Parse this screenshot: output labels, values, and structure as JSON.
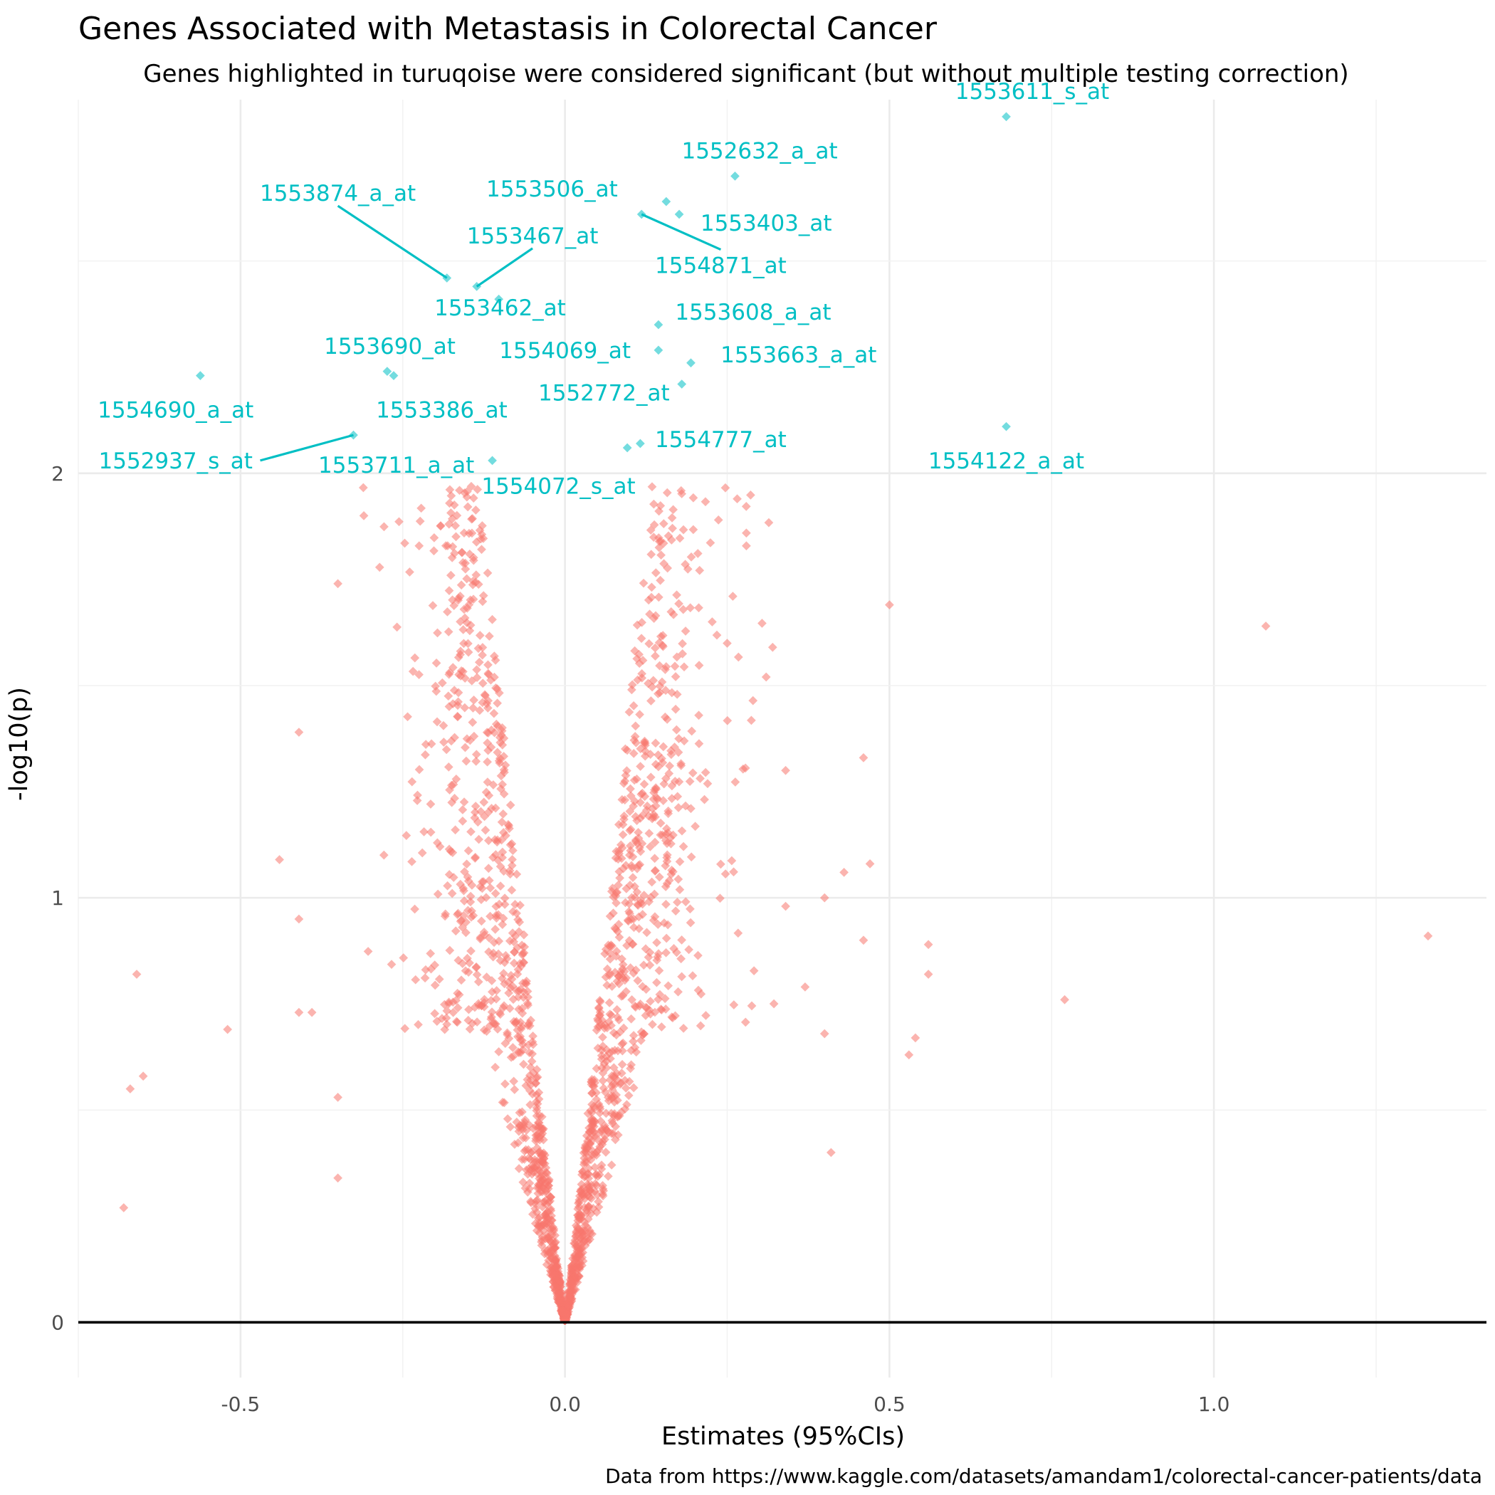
{
  "chart_data": {
    "type": "scatter",
    "title": "Genes Associated with Metastasis in Colorectal Cancer",
    "subtitle": "Genes highlighted in turuqoise were considered significant (but without multiple testing correction)",
    "xlabel": "Estimates (95%CIs)",
    "ylabel": "-log10(p)",
    "caption": "Data from https://www.kaggle.com/datasets/amandam1/colorectal-cancer-patients/data",
    "xlim": [
      -0.75,
      1.42
    ],
    "ylim": [
      -0.13,
      2.88
    ],
    "x_ticks": [
      -0.5,
      0.0,
      0.5,
      1.0
    ],
    "x_tick_labels": [
      "-0.5",
      "0.0",
      "0.5",
      "1.0"
    ],
    "y_ticks": [
      0,
      1,
      2
    ],
    "y_tick_labels": [
      "0",
      "1",
      "2"
    ],
    "grid": true,
    "hline": 0,
    "colors": {
      "significant": "#00bfc4",
      "not_significant": "#f8766d"
    },
    "significant": [
      {
        "label": "1553611_s_at",
        "x": 0.68,
        "y": 2.84,
        "lx": 0.72,
        "ly": 2.9
      },
      {
        "label": "1552632_a_at",
        "x": 0.262,
        "y": 2.7,
        "lx": 0.3,
        "ly": 2.76
      },
      {
        "label": "1553506_at",
        "x": 0.156,
        "y": 2.64,
        "lx": -0.02,
        "ly": 2.67
      },
      {
        "label": "1553403_at",
        "x": 0.176,
        "y": 2.61,
        "lx": 0.31,
        "ly": 2.59
      },
      {
        "label": "1554871_at",
        "x": 0.118,
        "y": 2.61,
        "lx": 0.24,
        "ly": 2.49,
        "leader": true
      },
      {
        "label": "1553874_a_at",
        "x": -0.182,
        "y": 2.46,
        "lx": -0.35,
        "ly": 2.66,
        "leader": true
      },
      {
        "label": "1553467_at",
        "x": -0.136,
        "y": 2.44,
        "lx": -0.05,
        "ly": 2.56,
        "leader": true
      },
      {
        "label": "1553462_at",
        "x": -0.102,
        "y": 2.41,
        "lx": -0.1,
        "ly": 2.39
      },
      {
        "label": "1553608_a_at",
        "x": 0.144,
        "y": 2.35,
        "lx": 0.29,
        "ly": 2.38
      },
      {
        "label": "1554069_at",
        "x": 0.144,
        "y": 2.29,
        "lx": 0.0,
        "ly": 2.29
      },
      {
        "label": "1553663_a_at",
        "x": 0.194,
        "y": 2.26,
        "lx": 0.36,
        "ly": 2.28
      },
      {
        "label": "1553690_at",
        "x": -0.274,
        "y": 2.24,
        "lx": -0.27,
        "ly": 2.3
      },
      {
        "label": "1554690_a_at",
        "x": -0.562,
        "y": 2.23,
        "lx": -0.6,
        "ly": 2.15
      },
      {
        "label": "1553386_at",
        "x": -0.264,
        "y": 2.23,
        "lx": -0.19,
        "ly": 2.15
      },
      {
        "label": "1552772_at",
        "x": 0.18,
        "y": 2.21,
        "lx": 0.06,
        "ly": 2.19
      },
      {
        "label": "1554122_a_at",
        "x": 0.68,
        "y": 2.11,
        "lx": 0.68,
        "ly": 2.03
      },
      {
        "label": "1552937_s_at",
        "x": -0.326,
        "y": 2.09,
        "lx": -0.6,
        "ly": 2.03,
        "leader": true
      },
      {
        "label": "1554777_at",
        "x": 0.116,
        "y": 2.07,
        "lx": 0.24,
        "ly": 2.08
      },
      {
        "label": "1554072_s_at",
        "x": 0.096,
        "y": 2.06,
        "lx": -0.01,
        "ly": 1.97
      },
      {
        "label": "1553711_a_at",
        "x": -0.112,
        "y": 2.03,
        "lx": -0.26,
        "ly": 2.02
      }
    ],
    "outliers": [
      {
        "x": 1.08,
        "y": 1.64
      },
      {
        "x": 1.33,
        "y": 0.91
      },
      {
        "x": 0.5,
        "y": 1.69
      },
      {
        "x": 0.77,
        "y": 0.76
      },
      {
        "x": 0.56,
        "y": 0.82
      },
      {
        "x": 0.56,
        "y": 0.89
      },
      {
        "x": 0.54,
        "y": 0.67
      },
      {
        "x": 0.53,
        "y": 0.63
      },
      {
        "x": 0.47,
        "y": 1.08
      },
      {
        "x": 0.46,
        "y": 0.9
      },
      {
        "x": 0.46,
        "y": 1.33
      },
      {
        "x": 0.43,
        "y": 1.06
      },
      {
        "x": 0.41,
        "y": 0.4
      },
      {
        "x": 0.4,
        "y": 0.68
      },
      {
        "x": 0.4,
        "y": 1.0
      },
      {
        "x": 0.37,
        "y": 0.79
      },
      {
        "x": 0.34,
        "y": 1.3
      },
      {
        "x": 0.34,
        "y": 0.98
      },
      {
        "x": 0.32,
        "y": 1.59
      },
      {
        "x": 0.31,
        "y": 1.52
      },
      {
        "x": -0.66,
        "y": 0.82
      },
      {
        "x": -0.65,
        "y": 0.58
      },
      {
        "x": -0.68,
        "y": 0.27
      },
      {
        "x": -0.67,
        "y": 0.55
      },
      {
        "x": -0.52,
        "y": 0.69
      },
      {
        "x": -0.44,
        "y": 1.09
      },
      {
        "x": -0.41,
        "y": 1.39
      },
      {
        "x": -0.41,
        "y": 0.95
      },
      {
        "x": -0.41,
        "y": 0.73
      },
      {
        "x": -0.39,
        "y": 0.73
      },
      {
        "x": -0.35,
        "y": 1.74
      },
      {
        "x": -0.35,
        "y": 0.53
      },
      {
        "x": -0.35,
        "y": 0.34
      },
      {
        "x": -0.31,
        "y": 1.9
      }
    ],
    "n_background_points": 1900
  }
}
